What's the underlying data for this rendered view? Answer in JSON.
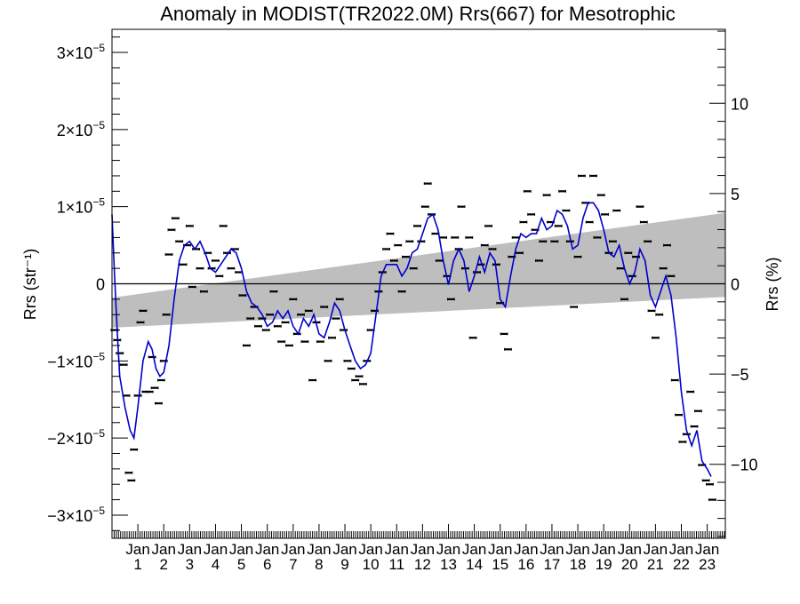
{
  "chart_data": {
    "type": "scatter",
    "title": "Anomaly in MODIST(TR2022.0M) Rrs(667) for Mesotrophic",
    "ylabel_left": "Rrs (str⁻¹)",
    "ylabel_right": "Rrs (%)",
    "y_left_ticks": [
      {
        "value": 3e-05,
        "mantissa": "3",
        "exp": "−5"
      },
      {
        "value": 2e-05,
        "mantissa": "2",
        "exp": "−5"
      },
      {
        "value": 1e-05,
        "mantissa": "1",
        "exp": "−5"
      },
      {
        "value": 0,
        "plain": "0"
      },
      {
        "value": -1e-05,
        "mantissa": "−1",
        "exp": "−5"
      },
      {
        "value": -2e-05,
        "mantissa": "−2",
        "exp": "−5"
      },
      {
        "value": -3e-05,
        "mantissa": "−3",
        "exp": "−5"
      }
    ],
    "y_right_ticks": [
      {
        "value": 10,
        "label": "10"
      },
      {
        "value": 5,
        "label": "5"
      },
      {
        "value": 0,
        "label": "0"
      },
      {
        "value": -5,
        "label": "−5"
      },
      {
        "value": -10,
        "label": "−10"
      }
    ],
    "ylim_left": [
      -3.3e-05,
      3.3e-05
    ],
    "ylim_right": [
      -14.1,
      14.1
    ],
    "xlim": [
      0,
      23.7
    ],
    "x_tick_labels": [
      {
        "x": 1,
        "month": "Jan",
        "year": "1"
      },
      {
        "x": 2,
        "month": "Jan",
        "year": "2"
      },
      {
        "x": 3,
        "month": "Jan",
        "year": "3"
      },
      {
        "x": 4,
        "month": "Jan",
        "year": "4"
      },
      {
        "x": 5,
        "month": "Jan",
        "year": "5"
      },
      {
        "x": 6,
        "month": "Jan",
        "year": "6"
      },
      {
        "x": 7,
        "month": "Jan",
        "year": "7"
      },
      {
        "x": 8,
        "month": "Jan",
        "year": "8"
      },
      {
        "x": 9,
        "month": "Jan",
        "year": "9"
      },
      {
        "x": 10,
        "month": "Jan",
        "year": "10"
      },
      {
        "x": 11,
        "month": "Jan",
        "year": "11"
      },
      {
        "x": 12,
        "month": "Jan",
        "year": "12"
      },
      {
        "x": 13,
        "month": "Jan",
        "year": "13"
      },
      {
        "x": 14,
        "month": "Jan",
        "year": "14"
      },
      {
        "x": 15,
        "month": "Jan",
        "year": "15"
      },
      {
        "x": 16,
        "month": "Jan",
        "year": "16"
      },
      {
        "x": 17,
        "month": "Jan",
        "year": "17"
      },
      {
        "x": 18,
        "month": "Jan",
        "year": "18"
      },
      {
        "x": 19,
        "month": "Jan",
        "year": "19"
      },
      {
        "x": 20,
        "month": "Jan",
        "year": "20"
      },
      {
        "x": 21,
        "month": "Jan",
        "year": "21"
      },
      {
        "x": 22,
        "month": "Jan",
        "year": "22"
      },
      {
        "x": 23,
        "month": "Jan",
        "year": "23"
      }
    ],
    "band": {
      "x": [
        0,
        23.7
      ],
      "lower": [
        -5.7e-06,
        -1.7e-06
      ],
      "upper": [
        -1.8e-06,
        9.2e-06
      ],
      "color": "#bebebe"
    },
    "zero_line": 0,
    "smooth_color": "#0000cc",
    "point_color": "#000000",
    "grid": false,
    "smooth_series": [
      [
        0.0,
        9e-06
      ],
      [
        0.1,
        1e-06
      ],
      [
        0.2,
        -6e-06
      ],
      [
        0.3,
        -1.2e-05
      ],
      [
        0.5,
        -1.6e-05
      ],
      [
        0.7,
        -1.9e-05
      ],
      [
        0.85,
        -2e-05
      ],
      [
        1.0,
        -1.6e-05
      ],
      [
        1.2,
        -1e-05
      ],
      [
        1.4,
        -7.5e-06
      ],
      [
        1.55,
        -8.5e-06
      ],
      [
        1.7,
        -1.1e-05
      ],
      [
        1.85,
        -1.2e-05
      ],
      [
        2.0,
        -1.15e-05
      ],
      [
        2.2,
        -8e-06
      ],
      [
        2.4,
        -2e-06
      ],
      [
        2.6,
        3e-06
      ],
      [
        2.8,
        5e-06
      ],
      [
        3.0,
        5.5e-06
      ],
      [
        3.2,
        4.5e-06
      ],
      [
        3.4,
        5.5e-06
      ],
      [
        3.6,
        4e-06
      ],
      [
        3.8,
        2e-06
      ],
      [
        4.0,
        1.5e-06
      ],
      [
        4.2,
        2.5e-06
      ],
      [
        4.4,
        3.5e-06
      ],
      [
        4.6,
        4.5e-06
      ],
      [
        4.8,
        4e-06
      ],
      [
        5.0,
        2e-06
      ],
      [
        5.2,
        -1e-06
      ],
      [
        5.4,
        -2.5e-06
      ],
      [
        5.6,
        -3e-06
      ],
      [
        5.8,
        -4e-06
      ],
      [
        6.0,
        -5.5e-06
      ],
      [
        6.2,
        -5e-06
      ],
      [
        6.4,
        -3.5e-06
      ],
      [
        6.6,
        -4.5e-06
      ],
      [
        6.8,
        -3.5e-06
      ],
      [
        7.0,
        -5.5e-06
      ],
      [
        7.2,
        -6.5e-06
      ],
      [
        7.4,
        -4.5e-06
      ],
      [
        7.6,
        -5.5e-06
      ],
      [
        7.8,
        -4e-06
      ],
      [
        8.0,
        -6.5e-06
      ],
      [
        8.2,
        -7e-06
      ],
      [
        8.4,
        -5e-06
      ],
      [
        8.6,
        -2.5e-06
      ],
      [
        8.8,
        -3.5e-06
      ],
      [
        9.0,
        -6e-06
      ],
      [
        9.2,
        -8e-06
      ],
      [
        9.4,
        -1e-05
      ],
      [
        9.6,
        -1.1e-05
      ],
      [
        9.8,
        -1.05e-05
      ],
      [
        10.0,
        -9e-06
      ],
      [
        10.2,
        -4e-06
      ],
      [
        10.4,
        1e-06
      ],
      [
        10.6,
        2.5e-06
      ],
      [
        10.8,
        2.5e-06
      ],
      [
        11.0,
        2.5e-06
      ],
      [
        11.2,
        1e-06
      ],
      [
        11.4,
        2e-06
      ],
      [
        11.6,
        4e-06
      ],
      [
        11.8,
        4.5e-06
      ],
      [
        12.0,
        6.5e-06
      ],
      [
        12.2,
        8.5e-06
      ],
      [
        12.4,
        9e-06
      ],
      [
        12.6,
        7e-06
      ],
      [
        12.8,
        3e-06
      ],
      [
        13.0,
        -1e-07
      ],
      [
        13.2,
        3e-06
      ],
      [
        13.4,
        4.5e-06
      ],
      [
        13.6,
        3e-06
      ],
      [
        13.8,
        -1e-06
      ],
      [
        14.0,
        1e-06
      ],
      [
        14.2,
        3.5e-06
      ],
      [
        14.4,
        1.5e-06
      ],
      [
        14.6,
        4e-06
      ],
      [
        14.8,
        3e-06
      ],
      [
        15.0,
        -2e-06
      ],
      [
        15.2,
        -3e-06
      ],
      [
        15.4,
        1e-06
      ],
      [
        15.6,
        4.5e-06
      ],
      [
        15.8,
        6.5e-06
      ],
      [
        16.0,
        6e-06
      ],
      [
        16.2,
        6.5e-06
      ],
      [
        16.4,
        6.5e-06
      ],
      [
        16.6,
        8.5e-06
      ],
      [
        16.8,
        7e-06
      ],
      [
        17.0,
        7.5e-06
      ],
      [
        17.2,
        9.5e-06
      ],
      [
        17.4,
        9e-06
      ],
      [
        17.6,
        7.5e-06
      ],
      [
        17.8,
        4.5e-06
      ],
      [
        18.0,
        5e-06
      ],
      [
        18.2,
        8.5e-06
      ],
      [
        18.4,
        1.05e-05
      ],
      [
        18.6,
        1.05e-05
      ],
      [
        18.8,
        9.5e-06
      ],
      [
        19.0,
        7e-06
      ],
      [
        19.2,
        4e-06
      ],
      [
        19.4,
        3.5e-06
      ],
      [
        19.6,
        5e-06
      ],
      [
        19.8,
        2e-06
      ],
      [
        20.0,
        0.0
      ],
      [
        20.2,
        1.5e-06
      ],
      [
        20.4,
        4.5e-06
      ],
      [
        20.6,
        3e-06
      ],
      [
        20.8,
        -1.5e-06
      ],
      [
        21.0,
        -3e-06
      ],
      [
        21.2,
        -1e-06
      ],
      [
        21.4,
        1e-06
      ],
      [
        21.6,
        -1.5e-06
      ],
      [
        21.8,
        -7e-06
      ],
      [
        22.0,
        -1.4e-05
      ],
      [
        22.2,
        -1.9e-05
      ],
      [
        22.4,
        -2.1e-05
      ],
      [
        22.6,
        -1.9e-05
      ],
      [
        22.8,
        -2.3e-05
      ],
      [
        23.0,
        -2.4e-05
      ],
      [
        23.15,
        -2.5e-05
      ]
    ],
    "points": [
      [
        0.1,
        -6e-06
      ],
      [
        0.2,
        -7.3e-06
      ],
      [
        0.3,
        -9e-06
      ],
      [
        0.45,
        -1.05e-05
      ],
      [
        0.55,
        -1.45e-05
      ],
      [
        0.65,
        -2.45e-05
      ],
      [
        0.75,
        -2.55e-05
      ],
      [
        0.85,
        -2.15e-05
      ],
      [
        1.0,
        -1.45e-05
      ],
      [
        1.1,
        -5e-06
      ],
      [
        1.2,
        -3.5e-06
      ],
      [
        1.3,
        -1.4e-05
      ],
      [
        1.45,
        -1.4e-05
      ],
      [
        1.55,
        -9.5e-06
      ],
      [
        1.65,
        -1.35e-05
      ],
      [
        1.8,
        -1.55e-05
      ],
      [
        1.9,
        -1.25e-05
      ],
      [
        2.0,
        -1e-05
      ],
      [
        2.1,
        -4e-06
      ],
      [
        2.2,
        3.8e-06
      ],
      [
        2.3,
        7e-06
      ],
      [
        2.45,
        8.5e-06
      ],
      [
        2.6,
        5.5e-06
      ],
      [
        2.75,
        2.5e-06
      ],
      [
        2.9,
        5e-06
      ],
      [
        3.0,
        7.5e-06
      ],
      [
        3.1,
        -4e-07
      ],
      [
        3.25,
        4.5e-06
      ],
      [
        3.4,
        2e-06
      ],
      [
        3.55,
        -1e-06
      ],
      [
        3.7,
        4e-06
      ],
      [
        3.85,
        2e-06
      ],
      [
        4.0,
        3e-06
      ],
      [
        4.15,
        1e-06
      ],
      [
        4.3,
        7.5e-06
      ],
      [
        4.45,
        4e-06
      ],
      [
        4.6,
        2e-06
      ],
      [
        4.75,
        4.5e-06
      ],
      [
        4.9,
        1.5e-06
      ],
      [
        5.05,
        -1.5e-06
      ],
      [
        5.2,
        -8e-06
      ],
      [
        5.35,
        -4.5e-06
      ],
      [
        5.5,
        -3e-06
      ],
      [
        5.65,
        -5.5e-06
      ],
      [
        5.8,
        -4.5e-06
      ],
      [
        5.95,
        -6e-06
      ],
      [
        6.1,
        -4e-06
      ],
      [
        6.25,
        -1e-06
      ],
      [
        6.4,
        -5.5e-06
      ],
      [
        6.55,
        -7.5e-06
      ],
      [
        6.7,
        -5e-06
      ],
      [
        6.85,
        -8e-06
      ],
      [
        7.0,
        -2e-06
      ],
      [
        7.15,
        -6.5e-06
      ],
      [
        7.3,
        -4e-06
      ],
      [
        7.45,
        -7.5e-06
      ],
      [
        7.6,
        -3.5e-06
      ],
      [
        7.75,
        -1.25e-05
      ],
      [
        7.9,
        -5e-06
      ],
      [
        8.05,
        -7.5e-06
      ],
      [
        8.2,
        -3e-06
      ],
      [
        8.35,
        -1e-05
      ],
      [
        8.5,
        -7e-06
      ],
      [
        8.65,
        -4.5e-06
      ],
      [
        8.8,
        -2e-06
      ],
      [
        8.95,
        -6e-06
      ],
      [
        9.1,
        -1e-05
      ],
      [
        9.25,
        -1.1e-05
      ],
      [
        9.4,
        -1.25e-05
      ],
      [
        9.55,
        -1.2e-05
      ],
      [
        9.7,
        -1.3e-05
      ],
      [
        9.85,
        -1e-05
      ],
      [
        10.0,
        -6e-06
      ],
      [
        10.15,
        -3.5e-06
      ],
      [
        10.3,
        -1e-06
      ],
      [
        10.45,
        1.5e-06
      ],
      [
        10.6,
        4.5e-06
      ],
      [
        10.75,
        6.5e-06
      ],
      [
        10.9,
        3e-06
      ],
      [
        11.05,
        5e-06
      ],
      [
        11.2,
        -1e-06
      ],
      [
        11.35,
        3.5e-06
      ],
      [
        11.5,
        5.5e-06
      ],
      [
        11.65,
        2e-06
      ],
      [
        11.8,
        7.5e-06
      ],
      [
        11.95,
        5.5e-06
      ],
      [
        12.1,
        1e-05
      ],
      [
        12.2,
        1.3e-05
      ],
      [
        12.35,
        9e-06
      ],
      [
        12.5,
        6.5e-06
      ],
      [
        12.65,
        3e-06
      ],
      [
        12.8,
        6e-06
      ],
      [
        12.95,
        1e-06
      ],
      [
        13.1,
        -2e-06
      ],
      [
        13.25,
        6e-06
      ],
      [
        13.4,
        4.5e-06
      ],
      [
        13.5,
        1e-05
      ],
      [
        13.65,
        2e-06
      ],
      [
        13.8,
        6e-06
      ],
      [
        13.95,
        -7e-06
      ],
      [
        14.1,
        1.5e-06
      ],
      [
        14.25,
        2.5e-06
      ],
      [
        14.4,
        5e-06
      ],
      [
        14.55,
        7.5e-06
      ],
      [
        14.7,
        4.5e-06
      ],
      [
        14.85,
        2.5e-06
      ],
      [
        15.0,
        -2.5e-06
      ],
      [
        15.15,
        -6.5e-06
      ],
      [
        15.3,
        -8.5e-06
      ],
      [
        15.45,
        3.5e-06
      ],
      [
        15.6,
        6e-06
      ],
      [
        15.75,
        4e-06
      ],
      [
        15.9,
        8e-06
      ],
      [
        16.05,
        1.2e-05
      ],
      [
        16.2,
        9e-06
      ],
      [
        16.35,
        7e-06
      ],
      [
        16.5,
        3e-06
      ],
      [
        16.65,
        5.5e-06
      ],
      [
        16.8,
        1.15e-05
      ],
      [
        16.95,
        8e-06
      ],
      [
        17.1,
        5.5e-06
      ],
      [
        17.25,
        7.5e-06
      ],
      [
        17.4,
        1.2e-05
      ],
      [
        17.55,
        9.5e-06
      ],
      [
        17.7,
        5.5e-06
      ],
      [
        17.85,
        -3e-06
      ],
      [
        18.0,
        3.5e-06
      ],
      [
        18.15,
        1.4e-05
      ],
      [
        18.3,
        1.05e-05
      ],
      [
        18.45,
        8e-06
      ],
      [
        18.6,
        1.4e-05
      ],
      [
        18.75,
        6e-06
      ],
      [
        18.9,
        1.15e-05
      ],
      [
        19.05,
        9e-06
      ],
      [
        19.2,
        4e-06
      ],
      [
        19.35,
        5.5e-06
      ],
      [
        19.5,
        9.5e-06
      ],
      [
        19.65,
        2e-06
      ],
      [
        19.8,
        -2e-06
      ],
      [
        19.95,
        4e-06
      ],
      [
        20.1,
        1e-06
      ],
      [
        20.25,
        3.5e-06
      ],
      [
        20.4,
        1e-05
      ],
      [
        20.55,
        8e-06
      ],
      [
        20.7,
        5.5e-06
      ],
      [
        20.85,
        -3.5e-06
      ],
      [
        21.0,
        -7e-06
      ],
      [
        21.15,
        -4e-06
      ],
      [
        21.3,
        2e-06
      ],
      [
        21.45,
        5e-06
      ],
      [
        21.6,
        1e-06
      ],
      [
        21.75,
        -1.25e-05
      ],
      [
        21.9,
        -1.7e-05
      ],
      [
        22.05,
        -2.05e-05
      ],
      [
        22.2,
        -1.95e-05
      ],
      [
        22.35,
        -1.4e-05
      ],
      [
        22.5,
        -1.85e-05
      ],
      [
        22.65,
        -1.65e-05
      ],
      [
        22.8,
        -2.35e-05
      ],
      [
        22.95,
        -2.55e-05
      ],
      [
        23.1,
        -2.6e-05
      ],
      [
        23.2,
        -2.8e-05
      ]
    ]
  }
}
